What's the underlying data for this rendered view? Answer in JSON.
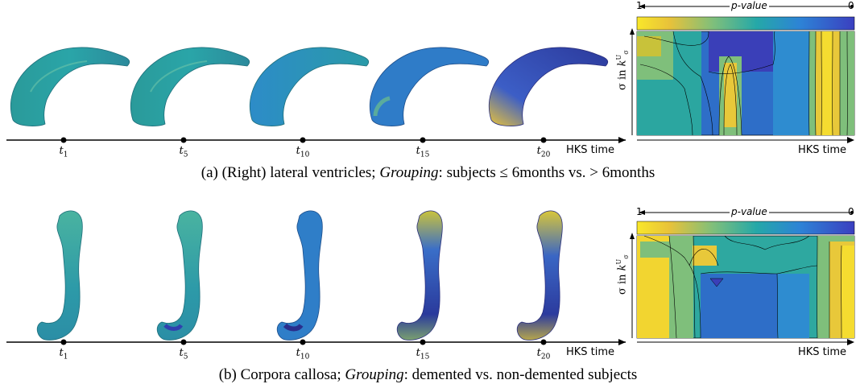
{
  "panel_a": {
    "time_labels": [
      {
        "base": "t",
        "sub": "1"
      },
      {
        "base": "t",
        "sub": "5"
      },
      {
        "base": "t",
        "sub": "10"
      },
      {
        "base": "t",
        "sub": "15"
      },
      {
        "base": "t",
        "sub": "20"
      }
    ],
    "axis_label": "HKS time",
    "heatmap_axis_label": "HKS time",
    "pvalue_label": "p-value",
    "pvalue_left": "1",
    "pvalue_right": "0",
    "ylabel_prefix": "σ in ",
    "ylabel_k": "k",
    "ylabel_sup": "U",
    "ylabel_sub": "σ",
    "caption_prefix": "(a)  (Right) lateral ventricles; ",
    "caption_grouping": "Grouping",
    "caption_suffix": ": subjects ≤ 6months vs. > 6months"
  },
  "panel_b": {
    "time_labels": [
      {
        "base": "t",
        "sub": "1"
      },
      {
        "base": "t",
        "sub": "5"
      },
      {
        "base": "t",
        "sub": "10"
      },
      {
        "base": "t",
        "sub": "15"
      },
      {
        "base": "t",
        "sub": "20"
      }
    ],
    "axis_label": "HKS time",
    "heatmap_axis_label": "HKS time",
    "pvalue_label": "p-value",
    "pvalue_left": "1",
    "pvalue_right": "0",
    "ylabel_prefix": "σ in ",
    "ylabel_k": "k",
    "ylabel_sup": "U",
    "ylabel_sub": "σ",
    "caption_prefix": "(b)  Corpora callosa; ",
    "caption_grouping": "Grouping",
    "caption_suffix": ": demented vs. non-demented subjects"
  },
  "colors": {
    "yellow": "#f2d530",
    "teal": "#2ea8a0",
    "blue": "#2f5fc4",
    "navy": "#2b2c8c"
  }
}
